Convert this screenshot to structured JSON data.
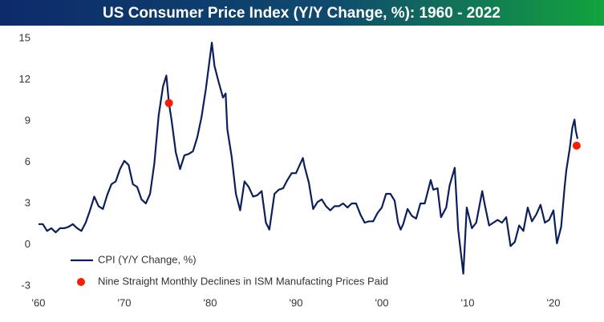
{
  "chart_data": {
    "type": "line",
    "title": "US Consumer Price Index (Y/Y Change, %): 1960 - 2022",
    "series": [
      {
        "name": "CPI (Y/Y Change, %)",
        "color": "#0c1f5c",
        "kind": "line",
        "x": [
          1960,
          1960.5,
          1961,
          1961.5,
          1962,
          1962.5,
          1963,
          1963.5,
          1964,
          1964.5,
          1965,
          1965.5,
          1966,
          1966.5,
          1967,
          1967.5,
          1968,
          1968.5,
          1969,
          1969.5,
          1970,
          1970.5,
          1971,
          1971.5,
          1972,
          1972.5,
          1973,
          1973.5,
          1974,
          1974.5,
          1974.9,
          1975.2,
          1975.5,
          1976,
          1976.5,
          1977,
          1977.5,
          1978,
          1978.5,
          1979,
          1979.5,
          1980.2,
          1980.5,
          1981,
          1981.5,
          1981.8,
          1982,
          1982.5,
          1983,
          1983.5,
          1984,
          1984.5,
          1985,
          1985.5,
          1986,
          1986.5,
          1986.9,
          1987.5,
          1988,
          1988.5,
          1989,
          1989.5,
          1990,
          1990.8,
          1991,
          1991.5,
          1992,
          1992.5,
          1993,
          1993.5,
          1994,
          1994.5,
          1995,
          1995.5,
          1996,
          1996.5,
          1997,
          1997.5,
          1998,
          1998.5,
          1999,
          1999.5,
          2000,
          2000.5,
          2001,
          2001.5,
          2001.9,
          2002.2,
          2002.5,
          2003,
          2003.5,
          2004,
          2004.5,
          2005,
          2005.7,
          2006,
          2006.5,
          2006.9,
          2007.5,
          2007.9,
          2008.5,
          2008.9,
          2009.5,
          2009.9,
          2010.5,
          2011,
          2011.7,
          2012,
          2012.5,
          2013,
          2013.5,
          2014,
          2014.5,
          2015,
          2015.5,
          2016,
          2016.5,
          2017,
          2017.5,
          2018,
          2018.5,
          2019,
          2019.5,
          2020,
          2020.4,
          2020.9,
          2021.3,
          2021.5,
          2021.9,
          2022.2,
          2022.45,
          2022.6,
          2022.8
        ],
        "values": [
          1.5,
          1.5,
          1.0,
          1.2,
          0.9,
          1.2,
          1.2,
          1.3,
          1.5,
          1.2,
          1.0,
          1.6,
          2.5,
          3.5,
          2.8,
          2.6,
          3.6,
          4.4,
          4.6,
          5.5,
          6.1,
          5.8,
          4.4,
          4.2,
          3.3,
          3.0,
          3.7,
          5.9,
          9.4,
          11.5,
          12.3,
          10.3,
          9.1,
          6.7,
          5.5,
          6.5,
          6.6,
          6.8,
          7.8,
          9.3,
          11.3,
          14.7,
          13.0,
          11.8,
          10.7,
          11.0,
          8.4,
          6.4,
          3.7,
          2.5,
          4.6,
          4.2,
          3.5,
          3.6,
          3.9,
          1.6,
          1.1,
          3.7,
          4.0,
          4.1,
          4.7,
          5.2,
          5.2,
          6.3,
          5.7,
          4.5,
          2.6,
          3.1,
          3.3,
          2.8,
          2.5,
          2.8,
          2.8,
          3.0,
          2.7,
          3.0,
          3.0,
          2.2,
          1.6,
          1.7,
          1.7,
          2.3,
          2.7,
          3.7,
          3.7,
          3.2,
          1.6,
          1.1,
          1.5,
          2.6,
          2.1,
          1.9,
          3.0,
          3.0,
          4.7,
          4.0,
          4.1,
          2.0,
          2.7,
          4.3,
          5.6,
          1.1,
          -2.1,
          2.7,
          1.2,
          1.6,
          3.9,
          2.9,
          1.4,
          1.6,
          1.8,
          1.6,
          2.0,
          -0.1,
          0.2,
          1.4,
          1.0,
          2.7,
          1.7,
          2.2,
          2.9,
          1.6,
          1.8,
          2.5,
          0.1,
          1.3,
          4.2,
          5.4,
          7.0,
          8.5,
          9.1,
          8.3,
          7.7
        ]
      },
      {
        "name": "Nine Straight Monthly Declines in ISM Manufacting Prices Paid",
        "color": "#ff1a00",
        "kind": "scatter",
        "x": [
          1975.2,
          2022.7
        ],
        "values": [
          10.3,
          7.2
        ]
      }
    ],
    "xlim": [
      1960,
      2022.8
    ],
    "xticks": [
      {
        "value": 1960,
        "label": "'60"
      },
      {
        "value": 1970,
        "label": "'70"
      },
      {
        "value": 1980,
        "label": "'80"
      },
      {
        "value": 1990,
        "label": "'90"
      },
      {
        "value": 2000,
        "label": "'00"
      },
      {
        "value": 2010,
        "label": "'10"
      },
      {
        "value": 2020,
        "label": "'20"
      }
    ],
    "ylim": [
      -3,
      15
    ],
    "yticks": [
      -3,
      0,
      3,
      6,
      9,
      12,
      15
    ],
    "grid": false,
    "legend": "lower left"
  }
}
